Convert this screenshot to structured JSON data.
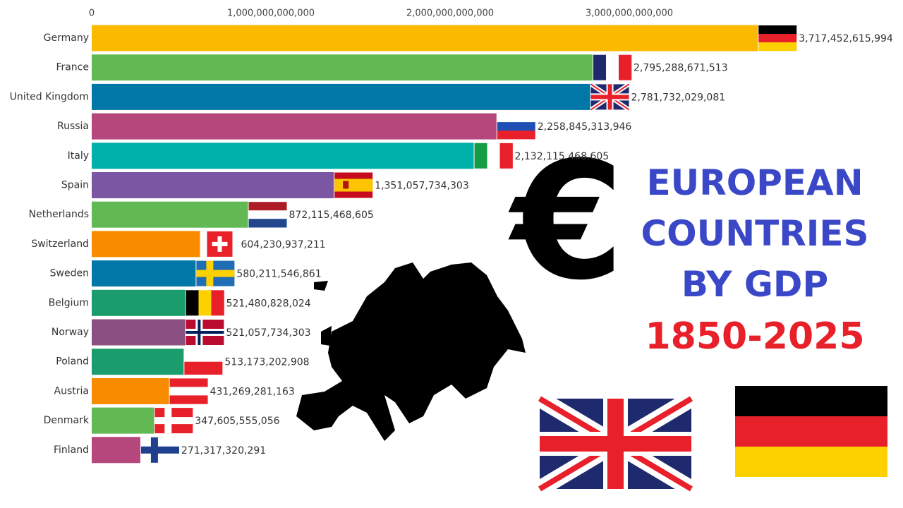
{
  "chart_data": {
    "type": "bar",
    "orientation": "horizontal",
    "title": "EUROPEAN COUNTRIES BY GDP",
    "subtitle": "1850-2025",
    "symbol": "€",
    "categories": [
      "Germany",
      "France",
      "United Kingdom",
      "Russia",
      "Italy",
      "Spain",
      "Netherlands",
      "Switzerland",
      "Sweden",
      "Belgium",
      "Norway",
      "Poland",
      "Austria",
      "Denmark",
      "Finland"
    ],
    "values": [
      3717452615994,
      2795288671513,
      2781732029081,
      2258845313946,
      2132115468605,
      1351057734303,
      872115468605,
      604230937211,
      580211546861,
      521480828024,
      521057734303,
      513173202908,
      431269281163,
      347605555056,
      271317320291
    ],
    "value_labels": [
      "3,717,452,615,994",
      "2,795,288,671,513",
      "2,781,732,029,081",
      "2,258,845,313,946",
      "2,132,115,468,605",
      "1,351,057,734,303",
      "872,115,468,605",
      "604,230,937,211",
      "580,211,546,861",
      "521,480,828,024",
      "521,057,734,303",
      "513,173,202,908",
      "431,269,281,163",
      "347,605,555,056",
      "271,317,320,291"
    ],
    "colors": [
      "#fbb900",
      "#62b954",
      "#0077a6",
      "#b5477d",
      "#00b0aa",
      "#7b56a3",
      "#62b954",
      "#f88b00",
      "#0077a6",
      "#1a9c6c",
      "#8b4f82",
      "#1a9c6c",
      "#f88b00",
      "#62b954",
      "#b5477d"
    ],
    "xlim": [
      0,
      4500000000000
    ],
    "xticks": [
      0,
      {
        "value": 1000000000000,
        "label": "1,000,000,000,000"
      },
      {
        "value": 2000000000000,
        "label": "2,000,000,000,000"
      },
      {
        "value": 3000000000000,
        "label": "3,000,000,000,000"
      }
    ]
  }
}
